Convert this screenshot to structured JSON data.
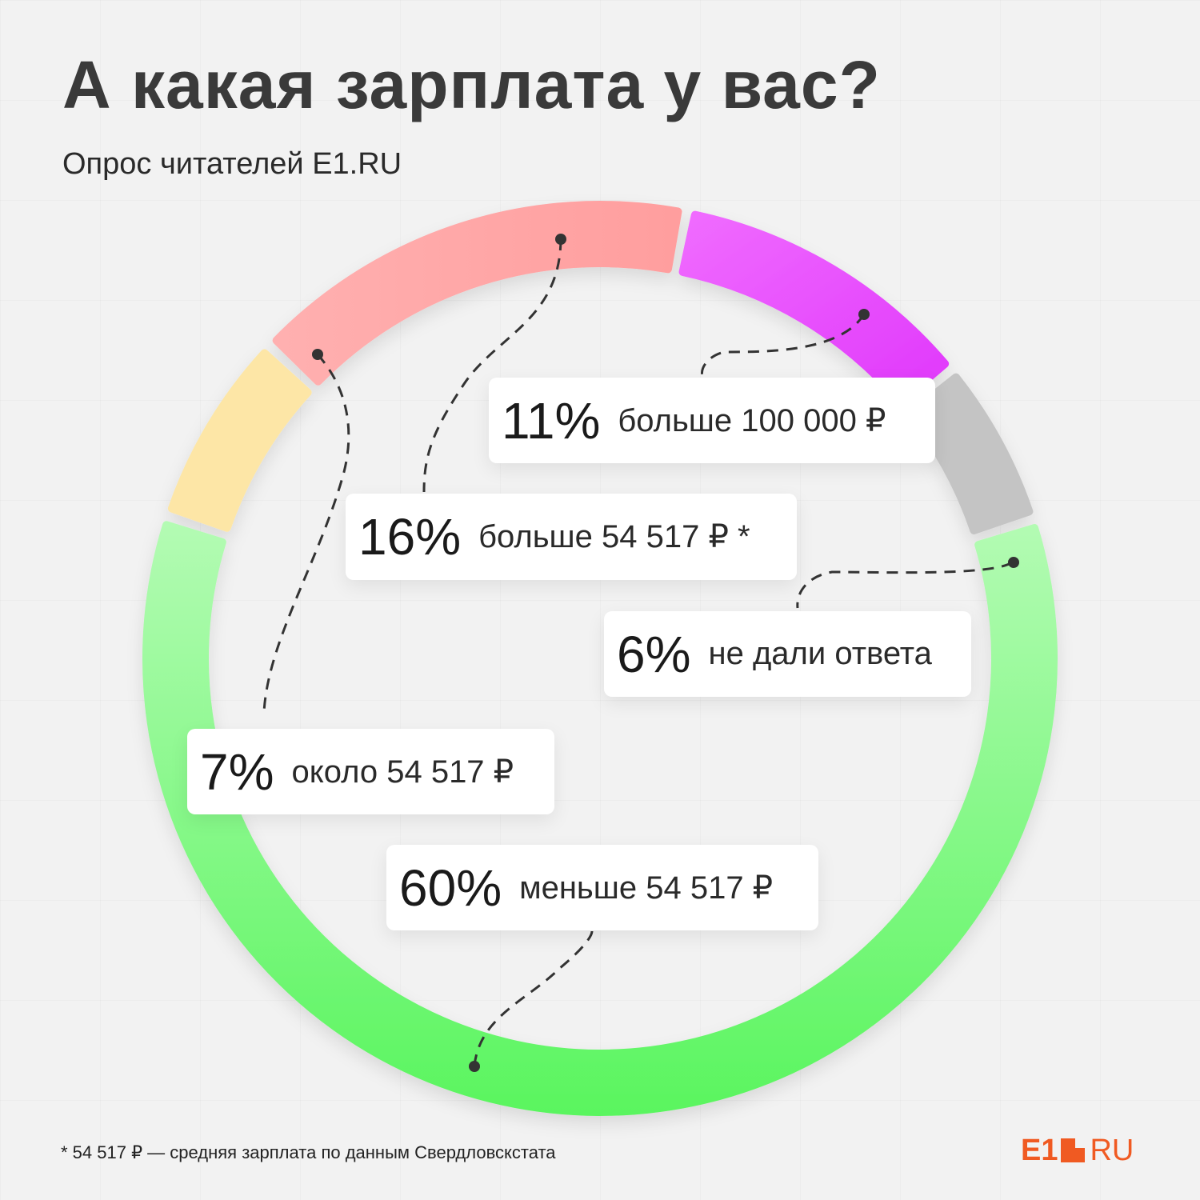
{
  "header": {
    "title": "А какая зарплата у вас?",
    "subtitle": "Опрос читателей E1.RU"
  },
  "chart_data": {
    "type": "pie",
    "style": "donut",
    "slices": [
      {
        "label": "больше 100 000 ₽",
        "percent": "11%",
        "value": 11,
        "color": "#e040fb"
      },
      {
        "label": "не дали ответа",
        "percent": "6%",
        "value": 6,
        "color": "#c4c4c4"
      },
      {
        "label": "меньше 54 517 ₽",
        "percent": "60%",
        "value": 60,
        "color": "#66f56b"
      },
      {
        "label": "около 54 517 ₽",
        "percent": "7%",
        "value": 7,
        "color": "#fde6a6"
      },
      {
        "label": "больше 54 517 ₽ *",
        "percent": "16%",
        "value": 16,
        "color": "#ffaaaa"
      }
    ]
  },
  "footnote": "* 54 517 ₽ — средняя зарплата по данным Свердловскстата",
  "logo": {
    "e1": "E1",
    "ru": "RU"
  }
}
